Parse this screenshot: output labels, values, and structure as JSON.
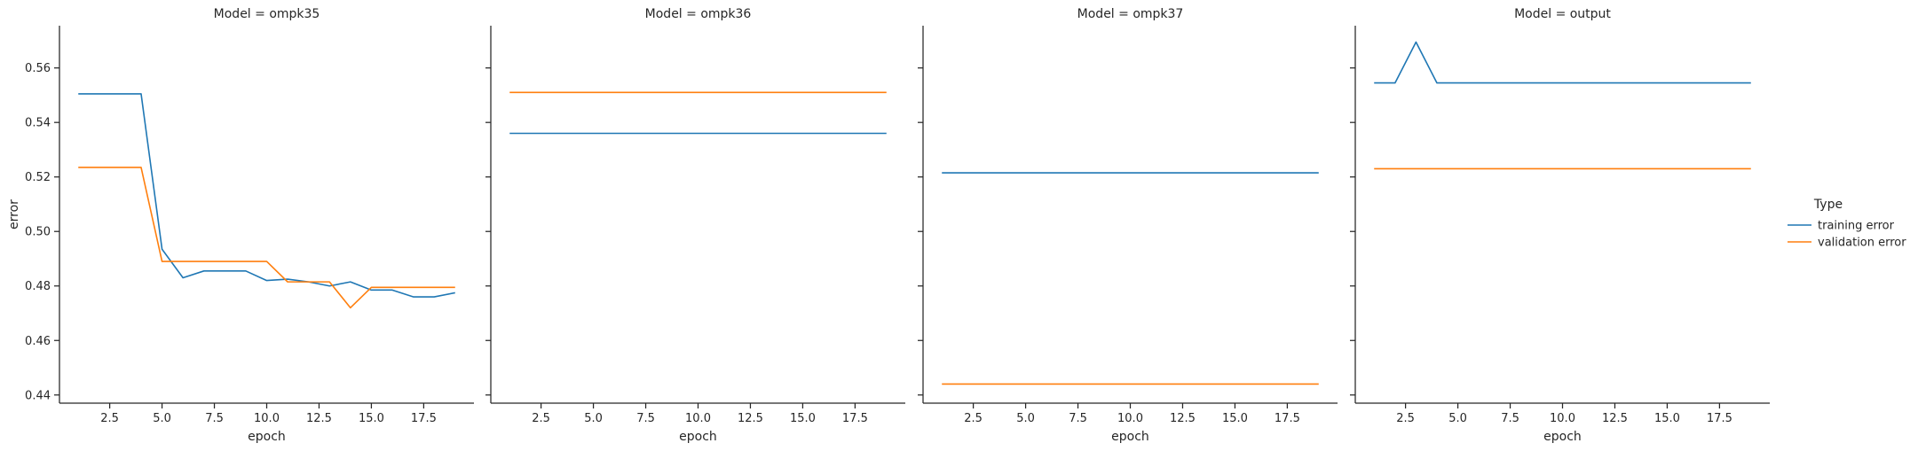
{
  "chart_data": {
    "type": "line",
    "facet_label": "Model",
    "xlabel": "epoch",
    "ylabel": "error",
    "xlim": [
      0.1,
      19.9
    ],
    "ylim": [
      0.437,
      0.5755
    ],
    "xticks": [
      2.5,
      5.0,
      7.5,
      10.0,
      12.5,
      15.0,
      17.5
    ],
    "xtick_labels": [
      "2.5",
      "5.0",
      "7.5",
      "10.0",
      "12.5",
      "15.0",
      "17.5"
    ],
    "yticks": [
      0.44,
      0.46,
      0.48,
      0.5,
      0.52,
      0.54,
      0.56
    ],
    "ytick_labels": [
      "0.44",
      "0.46",
      "0.48",
      "0.50",
      "0.52",
      "0.54",
      "0.56"
    ],
    "grid": false,
    "legend": {
      "title": "Type",
      "placement": "right",
      "entries": [
        {
          "label": "training error",
          "color": "#1f77b4"
        },
        {
          "label": "validation error",
          "color": "#ff7f0e"
        }
      ]
    },
    "panels": [
      {
        "title": "Model = ompk35",
        "x": [
          1,
          2,
          3,
          4,
          5,
          6,
          7,
          8,
          9,
          10,
          11,
          12,
          13,
          14,
          15,
          16,
          17,
          18,
          19
        ],
        "series": [
          {
            "name": "training error",
            "color": "#1f77b4",
            "values": [
              0.5505,
              0.5505,
              0.5505,
              0.5505,
              0.4935,
              0.483,
              0.4855,
              0.4855,
              0.4855,
              0.482,
              0.4825,
              0.4815,
              0.48,
              0.4815,
              0.4785,
              0.4785,
              0.476,
              0.476,
              0.4775
            ]
          },
          {
            "name": "validation error",
            "color": "#ff7f0e",
            "values": [
              0.5235,
              0.5235,
              0.5235,
              0.5235,
              0.489,
              0.489,
              0.489,
              0.489,
              0.489,
              0.489,
              0.4815,
              0.4815,
              0.4815,
              0.472,
              0.4795,
              0.4795,
              0.4795,
              0.4795,
              0.4795
            ]
          }
        ]
      },
      {
        "title": "Model = ompk36",
        "x": [
          1,
          19
        ],
        "series": [
          {
            "name": "training error",
            "color": "#1f77b4",
            "values": [
              0.536,
              0.536
            ]
          },
          {
            "name": "validation error",
            "color": "#ff7f0e",
            "values": [
              0.551,
              0.551
            ]
          }
        ]
      },
      {
        "title": "Model = ompk37",
        "x": [
          1,
          19
        ],
        "series": [
          {
            "name": "training error",
            "color": "#1f77b4",
            "values": [
              0.5215,
              0.5215
            ]
          },
          {
            "name": "validation error",
            "color": "#ff7f0e",
            "values": [
              0.444,
              0.444
            ]
          }
        ]
      },
      {
        "title": "Model = output",
        "x": [
          1,
          2,
          3,
          4,
          5,
          6,
          7,
          8,
          9,
          10,
          11,
          12,
          13,
          14,
          15,
          16,
          17,
          18,
          19
        ],
        "series": [
          {
            "name": "training error",
            "color": "#1f77b4",
            "values": [
              0.5545,
              0.5545,
              0.5695,
              0.5545,
              0.5545,
              0.5545,
              0.5545,
              0.5545,
              0.5545,
              0.5545,
              0.5545,
              0.5545,
              0.5545,
              0.5545,
              0.5545,
              0.5545,
              0.5545,
              0.5545,
              0.5545
            ]
          },
          {
            "name": "validation error",
            "color": "#ff7f0e",
            "values": [
              0.523,
              0.523,
              0.523,
              0.523,
              0.523,
              0.523,
              0.523,
              0.523,
              0.523,
              0.523,
              0.523,
              0.523,
              0.523,
              0.523,
              0.523,
              0.523,
              0.523,
              0.523,
              0.523
            ]
          }
        ]
      }
    ]
  }
}
